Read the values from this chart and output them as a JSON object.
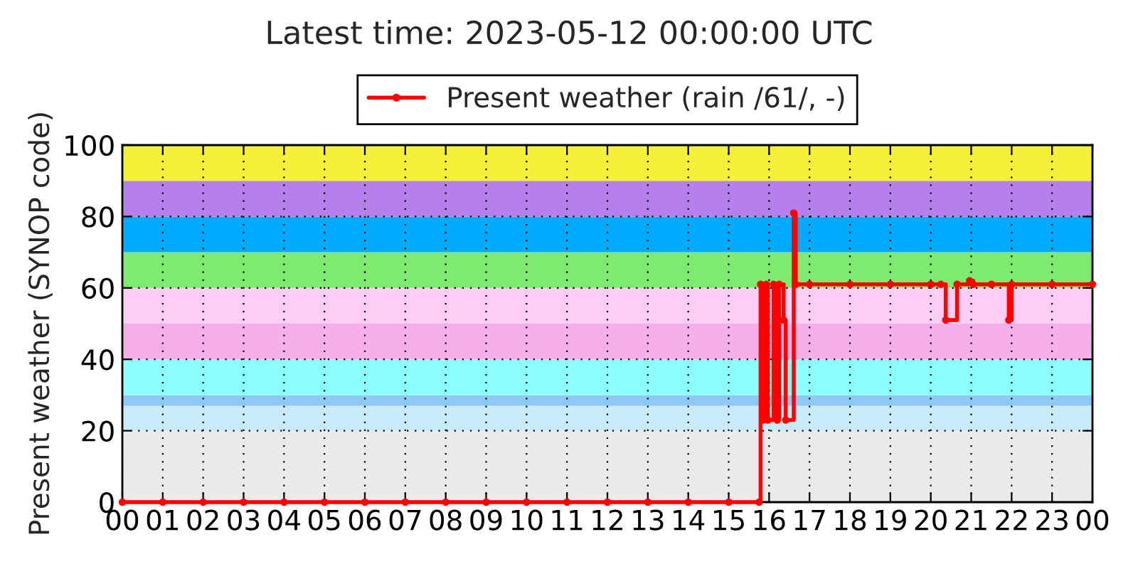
{
  "chart_data": {
    "type": "step",
    "title": "Latest time: 2023-05-12 00:00:00 UTC",
    "ylabel": "Present weather (SYNOP code)",
    "xlim": [
      0,
      24
    ],
    "xticks": [
      {
        "value": 0,
        "label": "00"
      },
      {
        "value": 1,
        "label": "01"
      },
      {
        "value": 2,
        "label": "02"
      },
      {
        "value": 3,
        "label": "03"
      },
      {
        "value": 4,
        "label": "04"
      },
      {
        "value": 5,
        "label": "05"
      },
      {
        "value": 6,
        "label": "06"
      },
      {
        "value": 7,
        "label": "07"
      },
      {
        "value": 8,
        "label": "08"
      },
      {
        "value": 9,
        "label": "09"
      },
      {
        "value": 10,
        "label": "10"
      },
      {
        "value": 11,
        "label": "11"
      },
      {
        "value": 12,
        "label": "12"
      },
      {
        "value": 13,
        "label": "13"
      },
      {
        "value": 14,
        "label": "14"
      },
      {
        "value": 15,
        "label": "15"
      },
      {
        "value": 16,
        "label": "16"
      },
      {
        "value": 17,
        "label": "17"
      },
      {
        "value": 18,
        "label": "18"
      },
      {
        "value": 19,
        "label": "19"
      },
      {
        "value": 20,
        "label": "20"
      },
      {
        "value": 21,
        "label": "21"
      },
      {
        "value": 22,
        "label": "22"
      },
      {
        "value": 23,
        "label": "23"
      },
      {
        "value": 24,
        "label": "00"
      }
    ],
    "ylim": [
      0,
      100
    ],
    "yticks": [
      0,
      20,
      40,
      60,
      80,
      100
    ],
    "grid": true,
    "legend": "top",
    "marker": "circle",
    "line_style": "solid",
    "bands": [
      {
        "axis": "y",
        "from": 0,
        "to": 20,
        "color": "#eaeaea"
      },
      {
        "axis": "y",
        "from": 20,
        "to": 27,
        "color": "#c8eafa"
      },
      {
        "axis": "y",
        "from": 27,
        "to": 30,
        "color": "#8ccaf5"
      },
      {
        "axis": "y",
        "from": 30,
        "to": 40,
        "color": "#8cffff"
      },
      {
        "axis": "y",
        "from": 40,
        "to": 50,
        "color": "#f5b0ea"
      },
      {
        "axis": "y",
        "from": 50,
        "to": 60,
        "color": "#fecdf5"
      },
      {
        "axis": "y",
        "from": 60,
        "to": 70,
        "color": "#7eea70"
      },
      {
        "axis": "y",
        "from": 70,
        "to": 80,
        "color": "#00aaff"
      },
      {
        "axis": "y",
        "from": 80,
        "to": 90,
        "color": "#b580ea"
      },
      {
        "axis": "y",
        "from": 90,
        "to": 100,
        "color": "#f5f03a"
      }
    ],
    "series": [
      {
        "name": "Present weather (rain /61/, -)",
        "color": "#ff0000",
        "x": [
          0,
          1,
          2,
          3,
          4,
          5,
          6,
          7,
          8,
          9,
          10,
          11,
          12,
          13,
          14,
          15,
          15.75,
          15.79,
          15.85,
          15.93,
          15.97,
          16.11,
          16.2,
          16.25,
          16.36,
          16.41,
          16.61,
          16.66,
          17,
          18,
          19,
          20,
          20.25,
          20.37,
          20.65,
          20.96,
          21.05,
          21.5,
          21.93,
          22,
          23,
          24
        ],
        "values": [
          0,
          0,
          0,
          0,
          0,
          0,
          0,
          0,
          0,
          0,
          0,
          0,
          0,
          0,
          0,
          0,
          0,
          61,
          23,
          61,
          23,
          61,
          23,
          61,
          51,
          23,
          81,
          61,
          61,
          61,
          61,
          61,
          61,
          51,
          61,
          62,
          61,
          61,
          51,
          61,
          61,
          61
        ]
      }
    ]
  }
}
